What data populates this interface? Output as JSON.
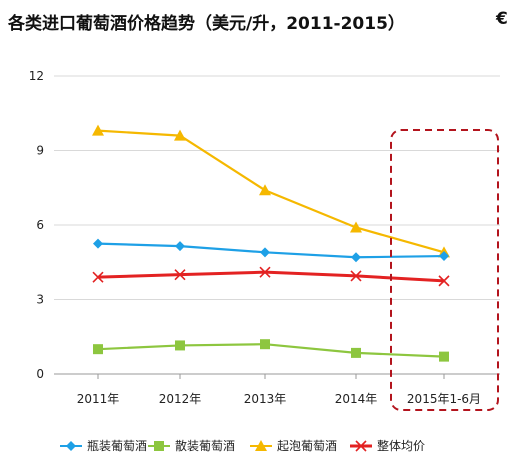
{
  "chart_data": {
    "type": "line",
    "title": "各类进口葡萄酒价格趋势（美元/升，2011-2015）",
    "title_trailing": "€",
    "categories": [
      "2011年",
      "2012年",
      "2013年",
      "2014年",
      "2015年1-6月"
    ],
    "ylim": [
      0,
      12
    ],
    "yticks": [
      "0",
      "3",
      "6",
      "9",
      "12"
    ],
    "grid": true,
    "legend_position": "bottom",
    "highlight": "2015年1-6月",
    "series": [
      {
        "name": "瓶装葡萄酒",
        "values": [
          5.25,
          5.15,
          4.9,
          4.7,
          4.75
        ],
        "color": "#1ea0e6",
        "marker": "diamond"
      },
      {
        "name": "散装葡萄酒",
        "values": [
          1.0,
          1.15,
          1.2,
          0.85,
          0.7
        ],
        "color": "#8dc63f",
        "marker": "square"
      },
      {
        "name": "起泡葡萄酒",
        "values": [
          9.8,
          9.6,
          7.4,
          5.9,
          4.9
        ],
        "color": "#f5b800",
        "marker": "triangle"
      },
      {
        "name": "整体均价",
        "values": [
          3.9,
          4.0,
          4.1,
          3.95,
          3.75
        ],
        "color": "#e32222",
        "marker": "x"
      }
    ],
    "highlight_color": "#b3141d"
  }
}
